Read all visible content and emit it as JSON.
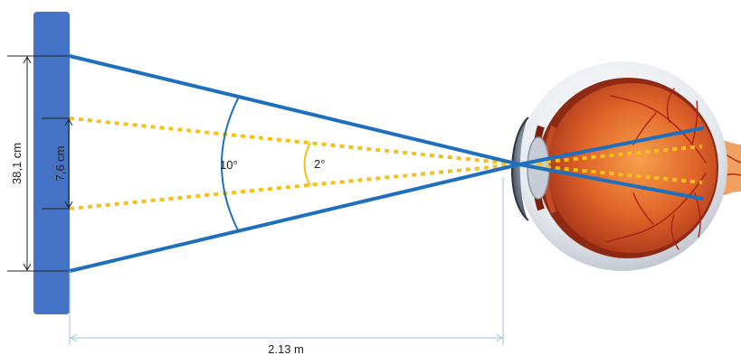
{
  "labels": {
    "outer_height": "38,1 cm",
    "inner_height": "7,6 cm",
    "wide_angle": "10°",
    "narrow_angle": "2°",
    "distance": "2.13 m"
  },
  "colors": {
    "screen": "#4472c4",
    "wide_field": "#1f6fbf",
    "narrow_field": "#f5c018",
    "dimension_lines": "#9dc3e6",
    "sclera": "#eceef2",
    "retina": "#d9531e",
    "optic_nerve": "#f0a060"
  }
}
